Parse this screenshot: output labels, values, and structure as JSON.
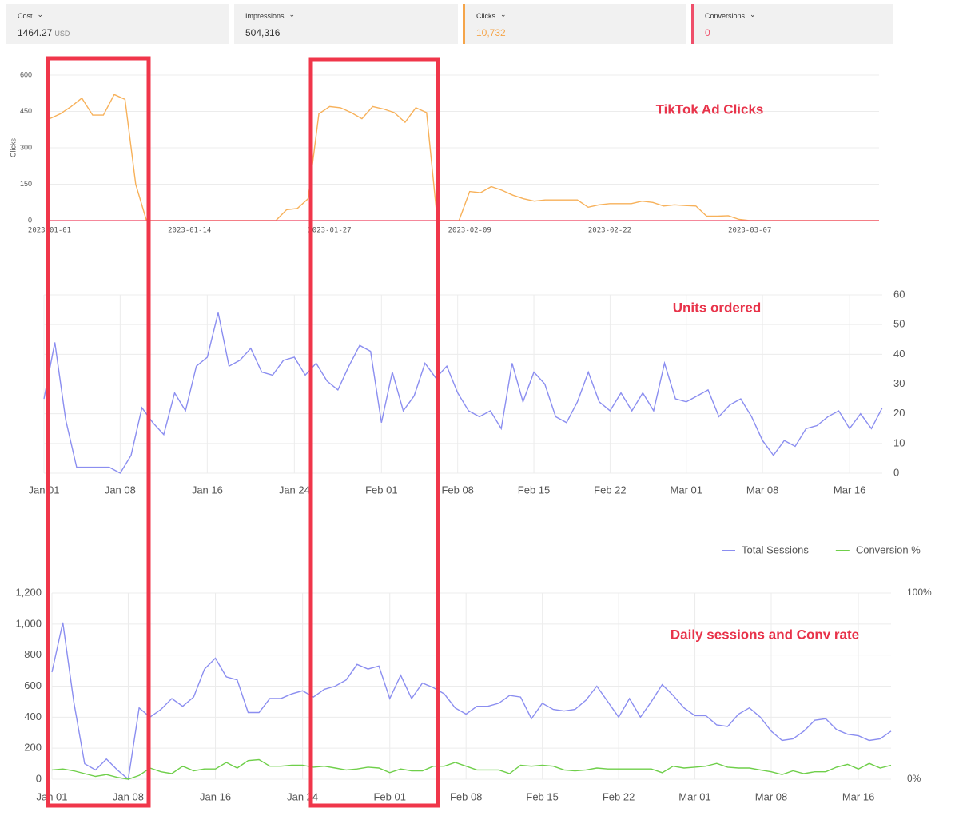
{
  "cards": [
    {
      "label": "Cost",
      "value": "1464.27",
      "unit": "USD"
    },
    {
      "label": "Impressions",
      "value": "504,316"
    },
    {
      "label": "Clicks",
      "value": "10,732",
      "color": "#f5a54a"
    },
    {
      "label": "Conversions",
      "value": "0",
      "color": "#ef4f6a"
    }
  ],
  "chart_data": [
    {
      "type": "line",
      "annotation": "TikTok Ad Clicks",
      "y_label": "Clicks",
      "categories": [
        "2023-01-01",
        null,
        null,
        null,
        null,
        null,
        null,
        null,
        null,
        null,
        null,
        null,
        null,
        "2023-01-14",
        null,
        null,
        null,
        null,
        null,
        null,
        null,
        null,
        null,
        null,
        null,
        null,
        "2023-01-27",
        null,
        null,
        null,
        null,
        null,
        null,
        null,
        null,
        null,
        null,
        null,
        null,
        "2023-02-09",
        null,
        null,
        null,
        null,
        null,
        null,
        null,
        null,
        null,
        null,
        null,
        null,
        "2023-02-22",
        null,
        null,
        null,
        null,
        null,
        null,
        null,
        null,
        null,
        null,
        null,
        null,
        "2023-03-07",
        null,
        null,
        null,
        null,
        null,
        null,
        null,
        null,
        null,
        null,
        null,
        null
      ],
      "series": [
        {
          "color": "#f7b15a",
          "values": [
            420,
            440,
            470,
            505,
            435,
            435,
            520,
            500,
            150,
            0,
            0,
            0,
            0,
            0,
            0,
            0,
            0,
            0,
            0,
            0,
            0,
            0,
            45,
            50,
            90,
            440,
            470,
            465,
            445,
            420,
            470,
            460,
            445,
            405,
            465,
            445,
            0,
            0,
            0,
            120,
            115,
            140,
            125,
            105,
            90,
            80,
            85,
            85,
            85,
            85,
            55,
            65,
            70,
            70,
            70,
            80,
            75,
            60,
            65,
            62,
            60,
            18,
            18,
            20,
            5,
            0,
            0,
            0,
            0,
            0,
            0,
            0,
            0,
            0,
            0,
            0,
            0,
            0
          ]
        },
        {
          "color": "#f2617a",
          "values": [
            0,
            0,
            0,
            0,
            0,
            0,
            0,
            0,
            0,
            0,
            0,
            0,
            0,
            0,
            0,
            0,
            0,
            0,
            0,
            0,
            0,
            0,
            0,
            0,
            0,
            0,
            0,
            0,
            0,
            0,
            0,
            0,
            0,
            0,
            0,
            0,
            0,
            0,
            0,
            0,
            0,
            0,
            0,
            0,
            0,
            0,
            0,
            0,
            0,
            0,
            0,
            0,
            0,
            0,
            0,
            0,
            0,
            0,
            0,
            0,
            0,
            0,
            0,
            0,
            0,
            0,
            0,
            0,
            0,
            0,
            0,
            0,
            0,
            0,
            0,
            0,
            0,
            0
          ]
        }
      ],
      "ylim": [
        0,
        600
      ],
      "yticks": [
        0,
        150,
        300,
        450,
        600
      ],
      "grid": true,
      "xgrid": false
    },
    {
      "type": "line",
      "annotation": "Units ordered",
      "categories": [
        "Jan 01",
        null,
        null,
        null,
        null,
        null,
        null,
        "Jan 08",
        null,
        null,
        null,
        null,
        null,
        null,
        null,
        "Jan 16",
        null,
        null,
        null,
        null,
        null,
        null,
        null,
        "Jan 24",
        null,
        null,
        null,
        null,
        null,
        null,
        null,
        "Feb 01",
        null,
        null,
        null,
        null,
        null,
        null,
        "Feb 08",
        null,
        null,
        null,
        null,
        null,
        null,
        "Feb 15",
        null,
        null,
        null,
        null,
        null,
        null,
        "Feb 22",
        null,
        null,
        null,
        null,
        null,
        null,
        "Mar 01",
        null,
        null,
        null,
        null,
        null,
        null,
        "Mar 08",
        null,
        null,
        null,
        null,
        null,
        null,
        null,
        "Mar 16",
        null,
        null,
        null
      ],
      "series": [
        {
          "color": "#8b8ef0",
          "values": [
            25,
            44,
            18,
            2,
            2,
            2,
            2,
            0,
            6,
            22,
            17,
            13,
            27,
            21,
            36,
            39,
            54,
            36,
            38,
            42,
            34,
            33,
            38,
            39,
            33,
            37,
            31,
            28,
            36,
            43,
            41,
            17,
            34,
            21,
            26,
            37,
            32,
            36,
            27,
            21,
            19,
            21,
            15,
            37,
            24,
            34,
            30,
            19,
            17,
            24,
            34,
            24,
            21,
            27,
            21,
            27,
            21,
            37,
            25,
            24,
            26,
            28,
            19,
            23,
            25,
            19,
            11,
            6,
            11,
            9,
            15,
            16,
            19,
            21,
            15,
            20,
            15,
            22
          ]
        }
      ],
      "ylim": [
        0,
        60
      ],
      "yticks": [
        0,
        10,
        20,
        30,
        40,
        50,
        60
      ],
      "grid": true,
      "xgrid": true
    },
    {
      "type": "line",
      "annotation": "Daily sessions and Conv rate",
      "categories": [
        "Jan 01",
        null,
        null,
        null,
        null,
        null,
        null,
        "Jan 08",
        null,
        null,
        null,
        null,
        null,
        null,
        null,
        "Jan 16",
        null,
        null,
        null,
        null,
        null,
        null,
        null,
        "Jan 24",
        null,
        null,
        null,
        null,
        null,
        null,
        null,
        "Feb 01",
        null,
        null,
        null,
        null,
        null,
        null,
        "Feb 08",
        null,
        null,
        null,
        null,
        null,
        null,
        "Feb 15",
        null,
        null,
        null,
        null,
        null,
        null,
        "Feb 22",
        null,
        null,
        null,
        null,
        null,
        null,
        "Mar 01",
        null,
        null,
        null,
        null,
        null,
        null,
        "Mar 08",
        null,
        null,
        null,
        null,
        null,
        null,
        null,
        "Mar 16",
        null,
        null,
        null
      ],
      "series": [
        {
          "name": "Total Sessions",
          "color": "#8b8ef0",
          "values": [
            690,
            1010,
            500,
            100,
            60,
            130,
            60,
            0,
            460,
            400,
            450,
            520,
            470,
            530,
            710,
            780,
            660,
            640,
            430,
            430,
            520,
            520,
            550,
            570,
            530,
            580,
            600,
            640,
            740,
            710,
            730,
            520,
            670,
            520,
            620,
            590,
            550,
            460,
            420,
            470,
            470,
            490,
            540,
            530,
            390,
            490,
            450,
            440,
            450,
            510,
            600,
            500,
            400,
            520,
            400,
            500,
            610,
            540,
            460,
            410,
            410,
            350,
            340,
            420,
            460,
            400,
            310,
            250,
            260,
            310,
            380,
            390,
            320,
            290,
            280,
            250,
            260,
            310
          ]
        },
        {
          "name": "Conversion %",
          "color": "#6fcf4a",
          "axis": "y2",
          "values": [
            5,
            5.5,
            4.5,
            3,
            1.5,
            2.5,
            1,
            0,
            2,
            6,
            4,
            3,
            7,
            4.5,
            5.5,
            5.5,
            9,
            6,
            10,
            10.5,
            7,
            7,
            7.5,
            7.5,
            6.5,
            7,
            6,
            5,
            5.5,
            6.5,
            6,
            3.5,
            5.5,
            4.5,
            4.5,
            7,
            7,
            9,
            7,
            5,
            5,
            5,
            3,
            7.5,
            7,
            7.5,
            7,
            5,
            4.5,
            5,
            6,
            5.5,
            5.5,
            5.5,
            5.5,
            5.5,
            3.5,
            7,
            6,
            6.5,
            7,
            8.5,
            6.5,
            6,
            6,
            5,
            4,
            2.5,
            4.5,
            3,
            4,
            4,
            6.5,
            8,
            5.5,
            8.5,
            6,
            7.5
          ]
        }
      ],
      "ylim": [
        0,
        1200
      ],
      "yticks": [
        0,
        200,
        400,
        600,
        800,
        {
          "value": 1000,
          "label": "1,000"
        },
        {
          "value": 1200,
          "label": "1,200"
        }
      ],
      "y2lim": [
        0,
        100
      ],
      "y2ticks": [
        {
          "value": 0,
          "label": "0%"
        },
        {
          "value": 100,
          "label": "100%"
        }
      ],
      "legend": "top-right",
      "grid": true,
      "xgrid": true
    }
  ]
}
